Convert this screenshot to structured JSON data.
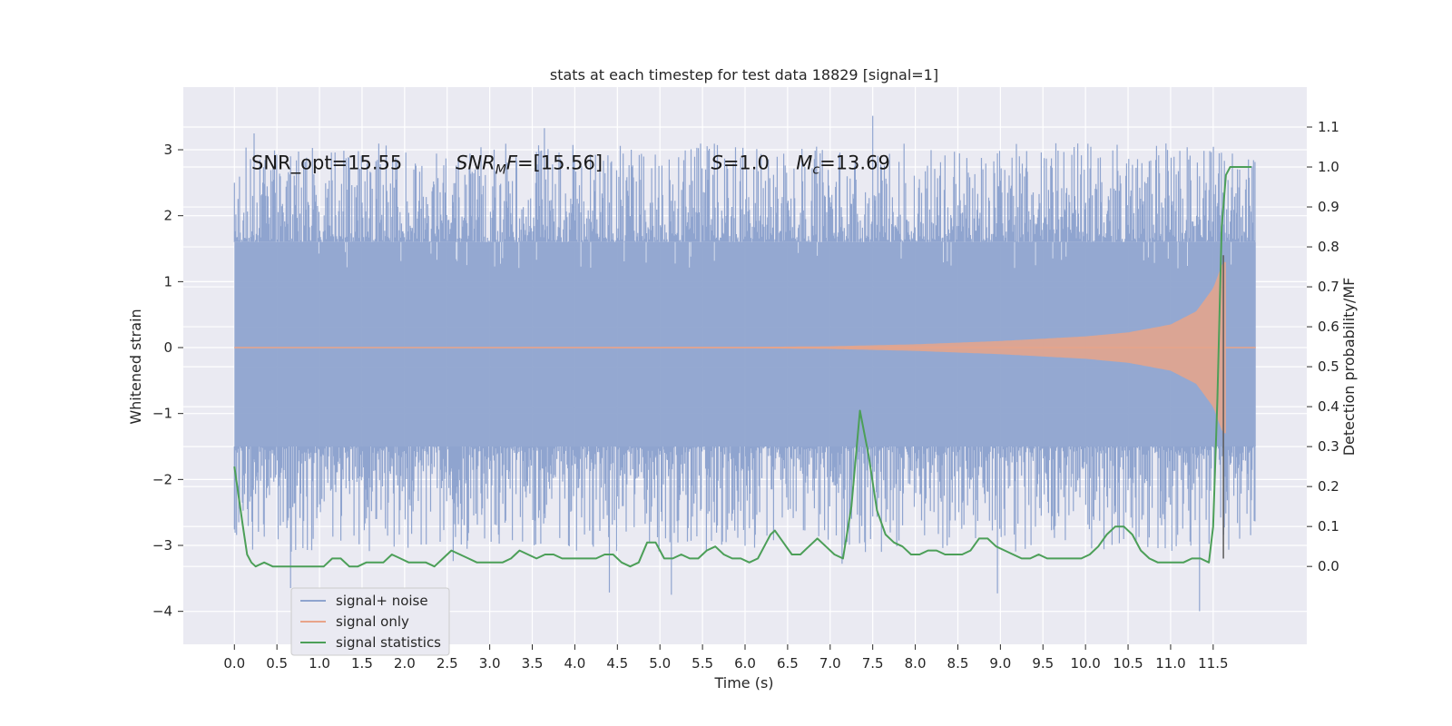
{
  "chart_data": {
    "type": "line",
    "title": "stats at each timestep for test data 18829 [signal=1]",
    "xlabel": "Time (s)",
    "ylabel": "Whitened strain",
    "y2label": "Detection probability/MF",
    "xlim": [
      -0.6,
      12.6
    ],
    "ylim": [
      -4.5,
      3.95
    ],
    "y2lim": [
      -0.195,
      1.2
    ],
    "xticks": [
      0.0,
      0.5,
      1.0,
      1.5,
      2.0,
      2.5,
      3.0,
      3.5,
      4.0,
      4.5,
      5.0,
      5.5,
      6.0,
      6.5,
      7.0,
      7.5,
      8.0,
      8.5,
      9.0,
      9.5,
      10.0,
      10.5,
      11.0,
      11.5
    ],
    "xtick_labels": [
      "0.0",
      "0.5",
      "1.0",
      "1.5",
      "2.0",
      "2.5",
      "3.0",
      "3.5",
      "4.0",
      "4.5",
      "5.0",
      "5.5",
      "6.0",
      "6.5",
      "7.0",
      "7.5",
      "8.0",
      "8.5",
      "9.0",
      "9.5",
      "10.0",
      "10.5",
      "11.0",
      "11.5"
    ],
    "yticks": [
      -4,
      -3,
      -2,
      -1,
      0,
      1,
      2,
      3
    ],
    "ytick_labels": [
      "−4",
      "−3",
      "−2",
      "−1",
      "0",
      "1",
      "2",
      "3"
    ],
    "y2ticks": [
      0.0,
      0.1,
      0.2,
      0.3,
      0.4,
      0.5,
      0.6,
      0.7,
      0.8,
      0.9,
      1.0,
      1.1
    ],
    "y2tick_labels": [
      "0.0",
      "0.1",
      "0.2",
      "0.3",
      "0.4",
      "0.5",
      "0.6",
      "0.7",
      "0.8",
      "0.9",
      "1.0",
      "1.1"
    ],
    "grid": true,
    "legend_position": "lower-left",
    "legend": [
      {
        "label": "signal+ noise",
        "color": "#8fa4cf"
      },
      {
        "label": "signal only",
        "color": "#e8a48a"
      },
      {
        "label": "signal statistics",
        "color": "#4c9f58"
      }
    ],
    "annotations": [
      {
        "text": "SNR_opt=15.55",
        "x": 0.2,
        "y": 2.8
      },
      {
        "main": "SNR",
        "sub": "M",
        "rest": "F=[15.56]",
        "x": 2.6,
        "y": 2.8
      },
      {
        "main": "S",
        "sub": "",
        "rest": "=1.0",
        "x": 5.6,
        "y": 2.8
      },
      {
        "main": "M",
        "sub": "c",
        "rest": "=13.69",
        "x": 6.6,
        "y": 2.8
      }
    ],
    "series": [
      {
        "name": "signal+ noise",
        "kind": "noise",
        "color": "#8fa4cf",
        "x_range": [
          0.0,
          12.0
        ],
        "envelope_upper": 1.6,
        "envelope_lower": -1.5,
        "spike_range": [
          1.6,
          3.6
        ],
        "spike_low_range": [
          -1.5,
          -4.1
        ]
      },
      {
        "name": "signal only",
        "kind": "chirp",
        "color": "#e8a48a",
        "x_range": [
          0.0,
          11.65
        ],
        "x": [
          0.0,
          6.0,
          7.0,
          8.0,
          9.0,
          10.0,
          10.5,
          11.0,
          11.3,
          11.5,
          11.6,
          11.63
        ],
        "amplitude": [
          0.005,
          0.01,
          0.02,
          0.05,
          0.1,
          0.17,
          0.23,
          0.35,
          0.55,
          0.9,
          1.25,
          1.3
        ]
      },
      {
        "name": "signal statistics",
        "kind": "stat",
        "color": "#4c9f58",
        "axis": "right",
        "x": [
          0.0,
          0.1,
          0.15,
          0.2,
          0.25,
          0.35,
          0.45,
          0.55,
          0.65,
          0.75,
          0.85,
          0.95,
          1.05,
          1.15,
          1.25,
          1.35,
          1.45,
          1.55,
          1.65,
          1.75,
          1.85,
          1.95,
          2.05,
          2.15,
          2.25,
          2.35,
          2.45,
          2.55,
          2.65,
          2.75,
          2.85,
          2.95,
          3.05,
          3.15,
          3.25,
          3.35,
          3.45,
          3.55,
          3.65,
          3.75,
          3.85,
          3.95,
          4.05,
          4.15,
          4.25,
          4.35,
          4.45,
          4.55,
          4.65,
          4.75,
          4.85,
          4.95,
          5.05,
          5.15,
          5.25,
          5.35,
          5.45,
          5.55,
          5.65,
          5.75,
          5.85,
          5.95,
          6.05,
          6.15,
          6.25,
          6.3,
          6.35,
          6.45,
          6.55,
          6.65,
          6.75,
          6.85,
          6.95,
          7.05,
          7.15,
          7.25,
          7.35,
          7.45,
          7.55,
          7.65,
          7.75,
          7.85,
          7.95,
          8.05,
          8.15,
          8.25,
          8.35,
          8.45,
          8.55,
          8.65,
          8.75,
          8.85,
          8.95,
          9.05,
          9.15,
          9.25,
          9.35,
          9.45,
          9.55,
          9.65,
          9.75,
          9.85,
          9.95,
          10.05,
          10.15,
          10.25,
          10.35,
          10.45,
          10.55,
          10.65,
          10.75,
          10.85,
          10.95,
          11.05,
          11.15,
          11.25,
          11.35,
          11.45,
          11.5,
          11.55,
          11.6,
          11.65,
          11.7,
          11.75,
          11.85,
          11.95
        ],
        "y": [
          0.25,
          0.1,
          0.03,
          0.01,
          0.0,
          0.01,
          0.0,
          0.0,
          0.0,
          0.0,
          0.0,
          0.0,
          0.0,
          0.02,
          0.02,
          0.0,
          0.0,
          0.01,
          0.01,
          0.01,
          0.03,
          0.02,
          0.01,
          0.01,
          0.01,
          0.0,
          0.02,
          0.04,
          0.03,
          0.02,
          0.01,
          0.01,
          0.01,
          0.01,
          0.02,
          0.04,
          0.03,
          0.02,
          0.03,
          0.03,
          0.02,
          0.02,
          0.02,
          0.02,
          0.02,
          0.03,
          0.03,
          0.01,
          0.0,
          0.01,
          0.06,
          0.06,
          0.02,
          0.02,
          0.03,
          0.02,
          0.02,
          0.04,
          0.05,
          0.03,
          0.02,
          0.02,
          0.01,
          0.02,
          0.06,
          0.08,
          0.09,
          0.06,
          0.03,
          0.03,
          0.05,
          0.07,
          0.05,
          0.03,
          0.02,
          0.15,
          0.39,
          0.28,
          0.14,
          0.08,
          0.06,
          0.05,
          0.03,
          0.03,
          0.04,
          0.04,
          0.03,
          0.03,
          0.03,
          0.04,
          0.07,
          0.07,
          0.05,
          0.04,
          0.03,
          0.02,
          0.02,
          0.03,
          0.02,
          0.02,
          0.02,
          0.02,
          0.02,
          0.03,
          0.05,
          0.08,
          0.1,
          0.1,
          0.08,
          0.04,
          0.02,
          0.01,
          0.01,
          0.01,
          0.01,
          0.02,
          0.02,
          0.01,
          0.1,
          0.42,
          0.85,
          0.98,
          1.0,
          1.0,
          1.0,
          1.0
        ]
      },
      {
        "name": "merger marker",
        "kind": "marker",
        "color": "#5a5a5a",
        "x": 11.62,
        "y_range": [
          -3.2,
          1.4
        ]
      }
    ]
  }
}
